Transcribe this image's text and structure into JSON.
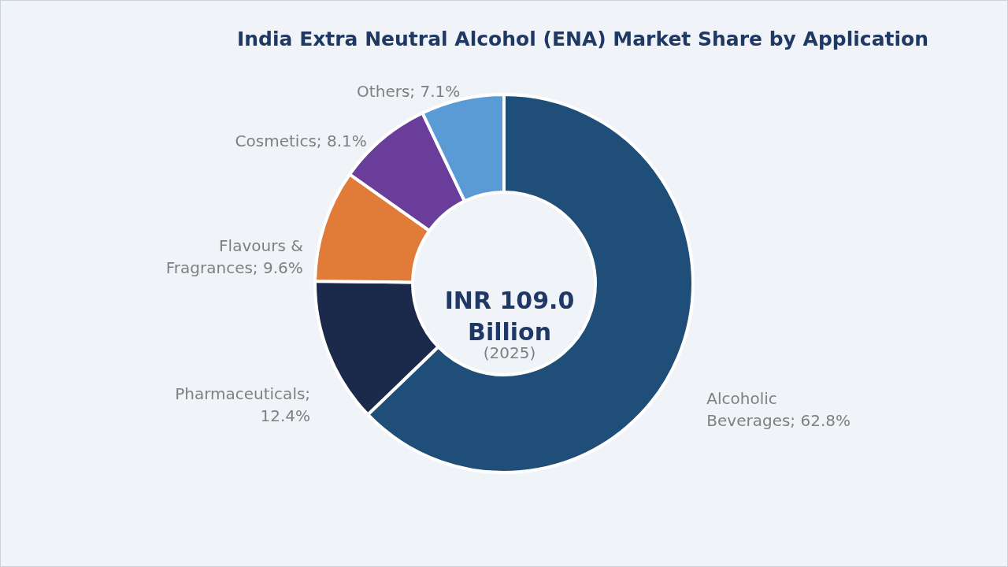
{
  "chart_data": {
    "type": "donut",
    "title": "India Extra Neutral Alcohol (ENA) Market Share by Application",
    "categories": [
      "Alcoholic Beverages",
      "Pharmaceuticals",
      "Flavours & Fragrances",
      "Cosmetics",
      "Others"
    ],
    "values": [
      62.8,
      12.4,
      9.6,
      8.1,
      7.1
    ],
    "colors": [
      "#1f4e79",
      "#1b2a4a",
      "#e07b39",
      "#6a3d9a",
      "#5b9bd5"
    ],
    "value_labels": [
      "; 62.8%",
      "; 12.4%",
      "; 9.6%",
      "; 8.1%",
      "; 7.1%"
    ],
    "annotations": [
      "INR 109.0 Billion",
      "(2025)"
    ],
    "legend": false
  }
}
